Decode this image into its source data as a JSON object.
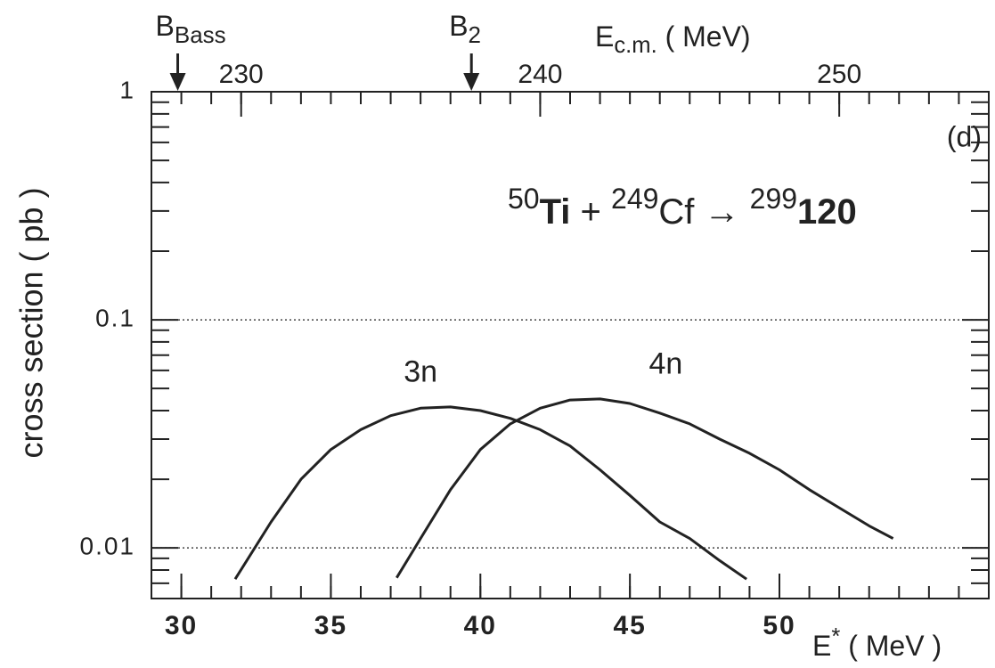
{
  "chart_data": {
    "type": "line",
    "log_y": true,
    "ylabel": "cross section ( pb )",
    "xlabel": [
      {
        "text": "E"
      },
      {
        "text": "*",
        "sup": true
      },
      {
        "text": " ( MeV )"
      }
    ],
    "x2label": [
      {
        "text": "E"
      },
      {
        "text": "c.m.",
        "sub": true
      },
      {
        "text": "  ( MeV)"
      }
    ],
    "panel_label": "(d)",
    "reaction": [
      {
        "text": "50",
        "sup": true
      },
      {
        "text": "Ti",
        "bold": true
      },
      {
        "text": " + "
      },
      {
        "text": "249",
        "sup": true
      },
      {
        "text": "Cf → "
      },
      {
        "text": "299",
        "sup": true
      },
      {
        "text": "120",
        "bold": true
      }
    ],
    "xlim": [
      29,
      57
    ],
    "xticks": [
      30,
      35,
      40,
      45,
      50
    ],
    "xminorticks": [
      30,
      31,
      32,
      33,
      34,
      35,
      36,
      37,
      38,
      39,
      40,
      41,
      42,
      43,
      44,
      45,
      46,
      47,
      48,
      49,
      50,
      51,
      52,
      53,
      54,
      55,
      56
    ],
    "x2lim": [
      227,
      255
    ],
    "x2ticks": [
      230,
      240,
      250
    ],
    "x2minorticks": [
      228,
      229,
      230,
      231,
      232,
      233,
      234,
      235,
      236,
      237,
      238,
      239,
      240,
      241,
      242,
      243,
      244,
      245,
      246,
      247,
      248,
      249,
      250,
      251,
      252,
      253,
      254
    ],
    "ylim": [
      0.006,
      1
    ],
    "yticks": [
      1,
      0.1,
      0.01
    ],
    "yminorticks": [
      0.007,
      0.008,
      0.009,
      0.02,
      0.03,
      0.04,
      0.05,
      0.06,
      0.07,
      0.08,
      0.09,
      0.2,
      0.3,
      0.4,
      0.5,
      0.6,
      0.7,
      0.8,
      0.9
    ],
    "grid": true,
    "markers": [
      {
        "label": "B",
        "sub": "Bass",
        "x": 29.88
      },
      {
        "label": "B",
        "sub": "2",
        "x": 39.7
      }
    ],
    "series": [
      {
        "name": "3n",
        "color": "#222222",
        "label_x": 38,
        "label_y": 0.058,
        "x": [
          31.8,
          33,
          34,
          35,
          36,
          37,
          38,
          39,
          40,
          41,
          42,
          43,
          44,
          45,
          46,
          47,
          48,
          48.9
        ],
        "values": [
          0.0073,
          0.013,
          0.02,
          0.027,
          0.033,
          0.038,
          0.041,
          0.0415,
          0.04,
          0.037,
          0.033,
          0.028,
          0.022,
          0.017,
          0.013,
          0.011,
          0.0088,
          0.0073
        ]
      },
      {
        "name": "4n",
        "color": "#222222",
        "label_x": 46.2,
        "label_y": 0.063,
        "x": [
          37.2,
          38,
          39,
          40,
          41,
          42,
          43,
          44,
          45,
          46,
          47,
          48,
          49,
          50,
          51,
          52,
          53,
          53.8
        ],
        "values": [
          0.0074,
          0.011,
          0.018,
          0.027,
          0.035,
          0.041,
          0.0445,
          0.045,
          0.043,
          0.039,
          0.035,
          0.03,
          0.026,
          0.022,
          0.018,
          0.015,
          0.0125,
          0.011
        ]
      }
    ]
  }
}
